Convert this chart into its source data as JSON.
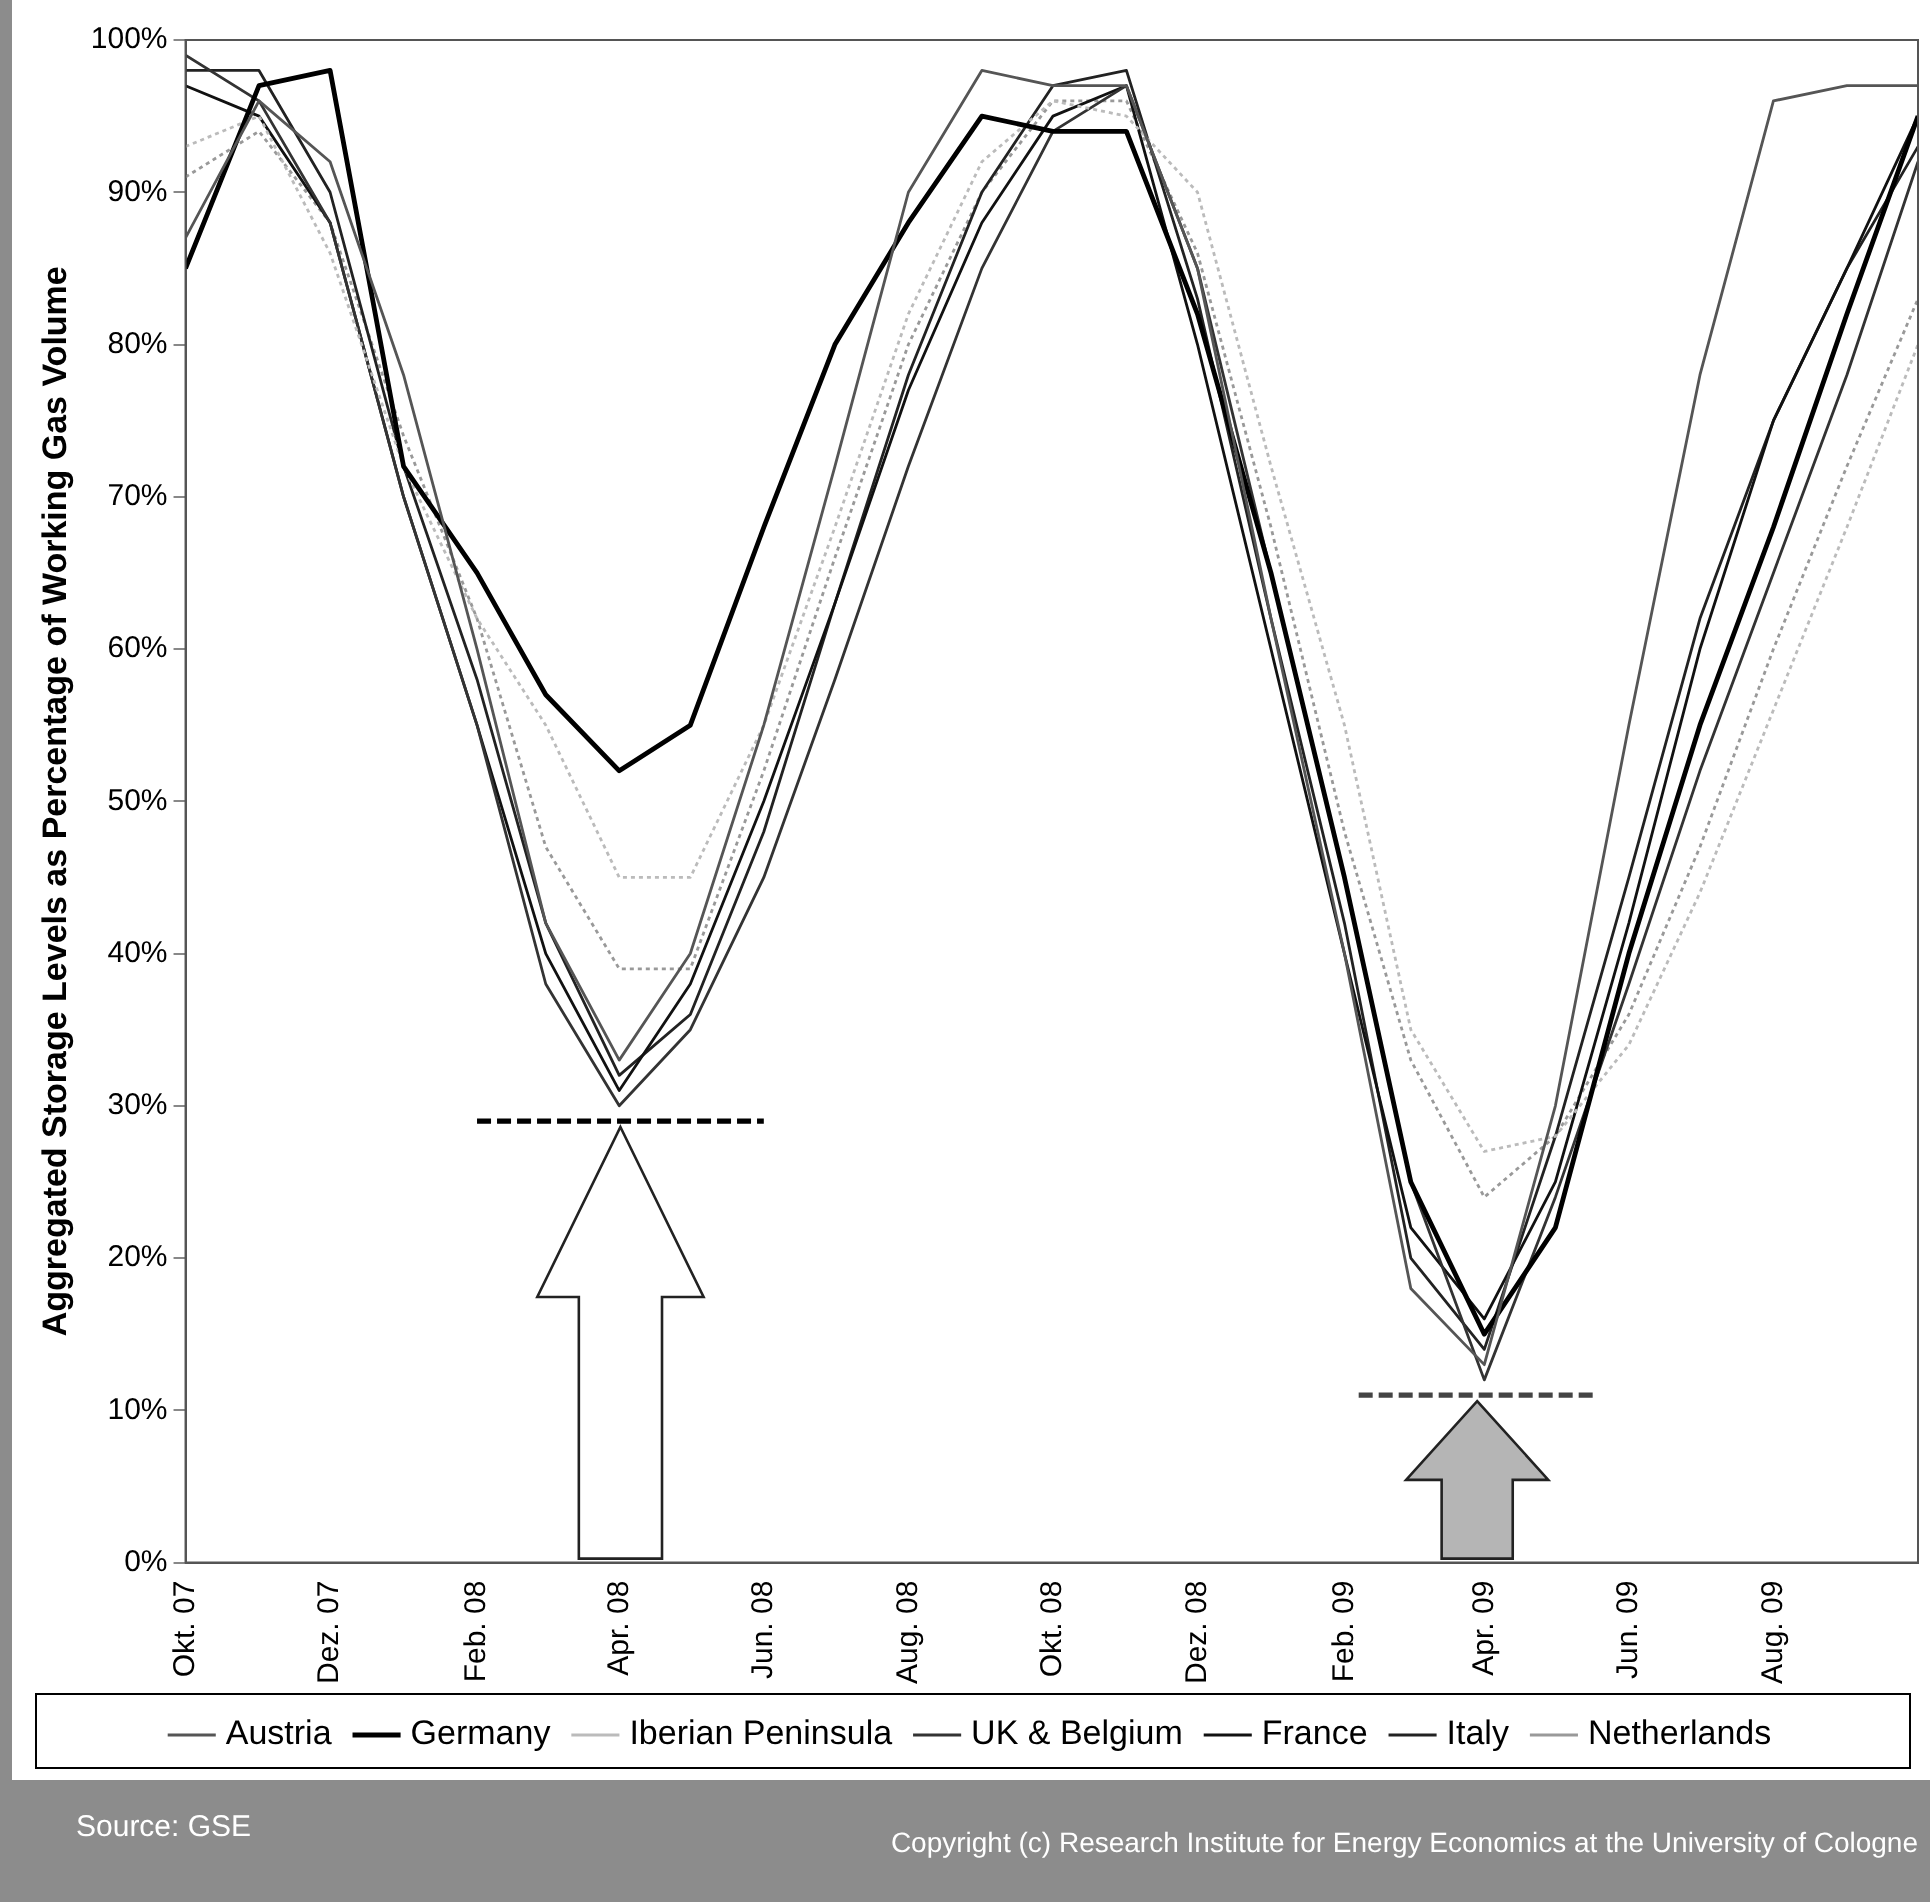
{
  "chart_data": {
    "type": "line",
    "ylabel": "Aggregated Storage Levels as Percentage of Working Gas Volume",
    "x": [
      "2007-10-01",
      "2007-11-01",
      "2007-12-01",
      "2008-01-01",
      "2008-02-01",
      "2008-03-01",
      "2008-04-01",
      "2008-05-01",
      "2008-06-01",
      "2008-07-01",
      "2008-08-01",
      "2008-09-01",
      "2008-10-01",
      "2008-11-01",
      "2008-12-01",
      "2009-01-01",
      "2009-02-01",
      "2009-03-01",
      "2009-04-01",
      "2009-05-01",
      "2009-06-01",
      "2009-07-01",
      "2009-08-01",
      "2009-09-01",
      "2009-10-01"
    ],
    "series": [
      {
        "name": "Austria",
        "color": "#555555",
        "values": [
          87,
          96,
          92,
          78,
          60,
          42,
          33,
          40,
          55,
          72,
          90,
          98,
          97,
          97,
          85,
          62,
          40,
          18,
          13,
          30,
          55,
          78,
          96,
          97,
          97
        ]
      },
      {
        "name": "Germany",
        "color": "#000000",
        "values": [
          85,
          97,
          98,
          72,
          65,
          57,
          52,
          55,
          68,
          80,
          88,
          95,
          94,
          94,
          82,
          65,
          45,
          25,
          15,
          22,
          40,
          55,
          68,
          82,
          95
        ]
      },
      {
        "name": "Iberian Peninsula",
        "color": "#bbbbbb",
        "line_style": "dotted",
        "values": [
          93,
          95,
          86,
          72,
          62,
          55,
          45,
          45,
          55,
          68,
          82,
          92,
          96,
          95,
          90,
          72,
          55,
          35,
          27,
          28,
          34,
          44,
          56,
          68,
          80
        ]
      },
      {
        "name": "UK & Belgium",
        "color": "#333333",
        "values": [
          99,
          96,
          88,
          70,
          55,
          38,
          30,
          35,
          45,
          58,
          72,
          85,
          94,
          97,
          85,
          65,
          45,
          25,
          12,
          24,
          38,
          52,
          65,
          78,
          92
        ]
      },
      {
        "name": "France",
        "color": "#111111",
        "values": [
          97,
          95,
          88,
          70,
          55,
          40,
          31,
          38,
          50,
          63,
          77,
          88,
          95,
          97,
          80,
          60,
          40,
          22,
          16,
          25,
          42,
          60,
          75,
          85,
          95
        ]
      },
      {
        "name": "Italy",
        "color": "#222222",
        "values": [
          98,
          98,
          90,
          72,
          58,
          42,
          32,
          36,
          48,
          63,
          78,
          90,
          97,
          98,
          83,
          62,
          42,
          20,
          14,
          28,
          45,
          62,
          75,
          85,
          93
        ]
      },
      {
        "name": "Netherlands",
        "color": "#999999",
        "line_style": "dotted",
        "values": [
          91,
          94,
          88,
          74,
          62,
          47,
          39,
          39,
          52,
          66,
          80,
          90,
          96,
          96,
          86,
          68,
          48,
          33,
          24,
          28,
          36,
          47,
          60,
          72,
          83
        ]
      },
      {
        "type": "line",
        "x": [
          "2008-02-01",
          "2008-06-01"
        ],
        "values": [
          29,
          29
        ],
        "color": "#000000",
        "line_style": "dashed"
      },
      {
        "type": "line",
        "x": [
          "2009-02-07",
          "2009-05-18"
        ],
        "values": [
          11,
          11
        ],
        "color": "#444444",
        "line_style": "dashed"
      }
    ],
    "xlim": [
      "2007-10-01",
      "2009-10-01"
    ],
    "xticks": [
      {
        "value": "2007-10-01",
        "label": "Okt. 07"
      },
      {
        "value": "2007-12-01",
        "label": "Dez. 07"
      },
      {
        "value": "2008-02-01",
        "label": "Feb. 08"
      },
      {
        "value": "2008-04-01",
        "label": "Apr. 08"
      },
      {
        "value": "2008-06-01",
        "label": "Jun. 08"
      },
      {
        "value": "2008-08-01",
        "label": "Aug. 08"
      },
      {
        "value": "2008-10-01",
        "label": "Okt. 08"
      },
      {
        "value": "2008-12-01",
        "label": "Dez. 08"
      },
      {
        "value": "2009-02-01",
        "label": "Feb. 09"
      },
      {
        "value": "2009-04-01",
        "label": "Apr. 09"
      },
      {
        "value": "2009-06-01",
        "label": "Jun. 09"
      },
      {
        "value": "2009-08-01",
        "label": "Aug. 09"
      }
    ],
    "ylim": [
      0,
      100
    ],
    "yticks": [
      {
        "value": 0,
        "label": "0%"
      },
      {
        "value": 10,
        "label": "10%"
      },
      {
        "value": 20,
        "label": "20%"
      },
      {
        "value": 30,
        "label": "30%"
      },
      {
        "value": 40,
        "label": "40%"
      },
      {
        "value": 50,
        "label": "50%"
      },
      {
        "value": 60,
        "label": "60%"
      },
      {
        "value": 70,
        "label": "70%"
      },
      {
        "value": 80,
        "label": "80%"
      },
      {
        "value": 90,
        "label": "90%"
      },
      {
        "value": 100,
        "label": "100%"
      }
    ],
    "grid": false,
    "legend": "bottom",
    "marker": "none",
    "line_style": "solid",
    "annotations": [
      "Source: GSE",
      "Copyright (c) Research Institute for Energy Economics at the University of Cologne"
    ]
  }
}
